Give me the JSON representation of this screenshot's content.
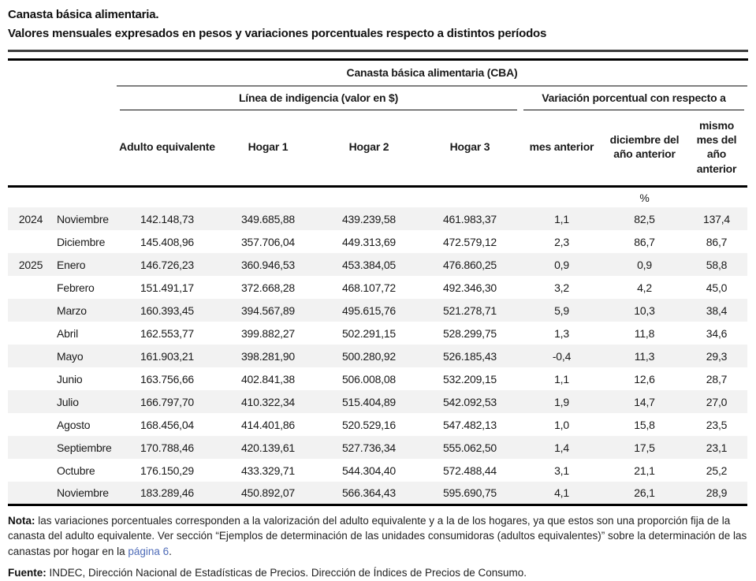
{
  "title": {
    "line1": "Canasta básica alimentaria.",
    "line2": "Valores mensuales expresados en pesos y variaciones porcentuales respecto a distintos períodos"
  },
  "table": {
    "group_header": "Canasta básica alimentaria (CBA)",
    "subgroup_left": "Línea de indigencia (valor en $)",
    "subgroup_right": "Variación porcentual con respecto a",
    "columns": [
      "Adulto equivalente",
      "Hogar 1",
      "Hogar 2",
      "Hogar 3",
      "mes anterior",
      "diciembre del año anterior",
      "mismo mes del año anterior"
    ],
    "unit_label": "%",
    "rows": [
      {
        "year": "2024",
        "month": "Noviembre",
        "values": [
          "142.148,73",
          "349.685,88",
          "439.239,58",
          "461.983,37",
          "1,1",
          "82,5",
          "137,4"
        ]
      },
      {
        "year": "",
        "month": "Diciembre",
        "values": [
          "145.408,96",
          "357.706,04",
          "449.313,69",
          "472.579,12",
          "2,3",
          "86,7",
          "86,7"
        ]
      },
      {
        "year": "2025",
        "month": "Enero",
        "values": [
          "146.726,23",
          "360.946,53",
          "453.384,05",
          "476.860,25",
          "0,9",
          "0,9",
          "58,8"
        ]
      },
      {
        "year": "",
        "month": "Febrero",
        "values": [
          "151.491,17",
          "372.668,28",
          "468.107,72",
          "492.346,30",
          "3,2",
          "4,2",
          "45,0"
        ]
      },
      {
        "year": "",
        "month": "Marzo",
        "values": [
          "160.393,45",
          "394.567,89",
          "495.615,76",
          "521.278,71",
          "5,9",
          "10,3",
          "38,4"
        ]
      },
      {
        "year": "",
        "month": "Abril",
        "values": [
          "162.553,77",
          "399.882,27",
          "502.291,15",
          "528.299,75",
          "1,3",
          "11,8",
          "34,6"
        ]
      },
      {
        "year": "",
        "month": "Mayo",
        "values": [
          "161.903,21",
          "398.281,90",
          "500.280,92",
          "526.185,43",
          "-0,4",
          "11,3",
          "29,3"
        ]
      },
      {
        "year": "",
        "month": "Junio",
        "values": [
          "163.756,66",
          "402.841,38",
          "506.008,08",
          "532.209,15",
          "1,1",
          "12,6",
          "28,7"
        ]
      },
      {
        "year": "",
        "month": "Julio",
        "values": [
          "166.797,70",
          "410.322,34",
          "515.404,89",
          "542.092,53",
          "1,9",
          "14,7",
          "27,0"
        ]
      },
      {
        "year": "",
        "month": "Agosto",
        "values": [
          "168.456,04",
          "414.401,86",
          "520.529,16",
          "547.482,13",
          "1,0",
          "15,8",
          "23,5"
        ]
      },
      {
        "year": "",
        "month": "Septiembre",
        "values": [
          "170.788,46",
          "420.139,61",
          "527.736,34",
          "555.062,50",
          "1,4",
          "17,5",
          "23,1"
        ]
      },
      {
        "year": "",
        "month": "Octubre",
        "values": [
          "176.150,29",
          "433.329,71",
          "544.304,40",
          "572.488,44",
          "3,1",
          "21,1",
          "25,2"
        ]
      },
      {
        "year": "",
        "month": "Noviembre",
        "values": [
          "183.289,46",
          "450.892,07",
          "566.364,43",
          "595.690,75",
          "4,1",
          "26,1",
          "28,9"
        ]
      }
    ]
  },
  "footer": {
    "nota_label": "Nota:",
    "nota_text_1": " las variaciones porcentuales corresponden a la valorización del adulto equivalente y a la de los hogares, ya que estos son una proporción fija de la canasta del adulto equivalente. Ver sección “Ejemplos de determinación de las unidades consumidoras (adultos equivalentes)” sobre la determinación de las canastas por hogar en la ",
    "nota_link": "página 6",
    "nota_text_2": ".",
    "fuente_label": "Fuente:",
    "fuente_text": " INDEC, Dirección Nacional de Estadísticas de Precios. Dirección de Índices de Precios de Consumo."
  },
  "colors": {
    "row_stripe": "#f2f2f2",
    "link_blue": "#4f6cb8",
    "rule_gray": "#808080",
    "rule_black": "#000000"
  }
}
